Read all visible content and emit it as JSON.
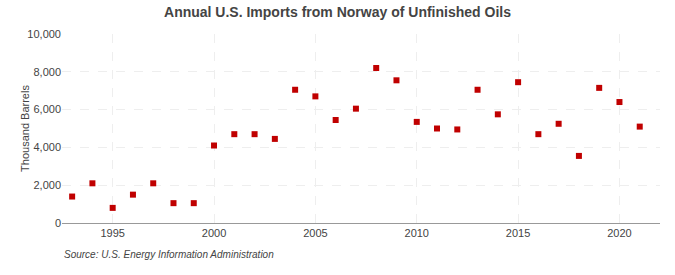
{
  "chart_data": {
    "type": "scatter",
    "title": "Annual U.S. Imports from Norway of Unfinished Oils",
    "ylabel": "Thousand Barrels",
    "source": "Source: U.S. Energy Information Administration",
    "x": [
      1993,
      1994,
      1995,
      1996,
      1997,
      1998,
      1999,
      2000,
      2001,
      2002,
      2003,
      2004,
      2005,
      2006,
      2007,
      2008,
      2009,
      2010,
      2011,
      2012,
      2013,
      2014,
      2015,
      2016,
      2017,
      2018,
      2019,
      2020,
      2021
    ],
    "values": [
      1400,
      2100,
      800,
      1500,
      2100,
      1050,
      1050,
      4100,
      4700,
      4700,
      4450,
      7050,
      6700,
      5450,
      6050,
      8200,
      7550,
      5350,
      5000,
      4950,
      7050,
      5750,
      7450,
      4700,
      5250,
      3550,
      7150,
      6400,
      5100
    ],
    "color": "#c00000",
    "marker": "square",
    "xlim": [
      1992.5,
      2022
    ],
    "xticks": [
      1995,
      2000,
      2005,
      2010,
      2015,
      2020
    ],
    "ylim": [
      0,
      10000
    ],
    "yticks": [
      0,
      {
        "value": 2000,
        "label": "2,000"
      },
      {
        "value": 4000,
        "label": "4,000"
      },
      {
        "value": 6000,
        "label": "6,000"
      },
      {
        "value": 8000,
        "label": "8,000"
      },
      {
        "value": 10000,
        "label": "10,000"
      }
    ],
    "grid": true
  }
}
